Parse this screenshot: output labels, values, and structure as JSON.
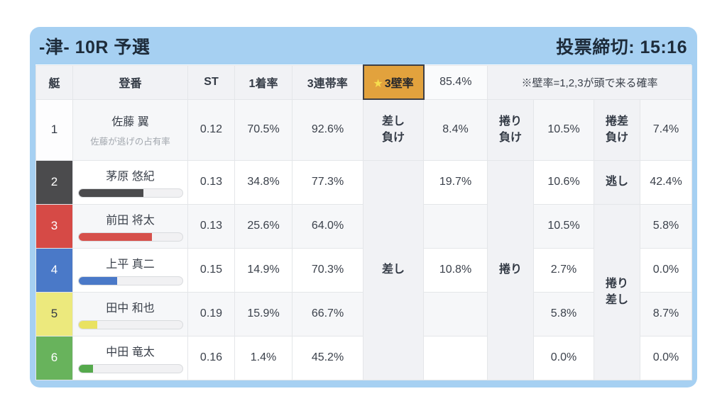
{
  "header": {
    "title": "-津- 10R 予選",
    "deadline": "投票締切: 15:16"
  },
  "columns": {
    "boat": "艇",
    "racer": "登番",
    "st": "ST",
    "win1": "1着率",
    "top3": "3連帯率",
    "wall_star": "★",
    "wall_label": "3壁率",
    "wall_value": "85.4%",
    "note": "※壁率=1,2,3が頭で来る確率"
  },
  "merged": {
    "sashi": "差し",
    "makuri": "捲り",
    "makurizashi": "捲り\n差し"
  },
  "rows": [
    {
      "boat": "1",
      "boat_bg": "#fdfdfe",
      "boat_fg": "#333a45",
      "name": "佐藤 翼",
      "sub": "佐藤が逃げの占有率",
      "st": "0.12",
      "win1": "70.5%",
      "top3": "92.6%",
      "lose_sashi_label": "差し\n負け",
      "lose_sashi": "8.4%",
      "lose_makuri_label": "捲り\n負け",
      "lose_makuri": "10.5%",
      "lose_makurizashi_label": "捲差\n負け",
      "lose_makurizashi": "7.4%"
    },
    {
      "boat": "2",
      "boat_bg": "#4b4b4d",
      "boat_fg": "#ffffff",
      "name": "茅原 悠紀",
      "bar_percent": 63,
      "bar_color": "#4b4b4d",
      "st": "0.13",
      "win1": "34.8%",
      "top3": "77.3%",
      "sashi": "19.7%",
      "makuri": "10.6%",
      "nigashi_label": "逃し",
      "nigashi": "42.4%"
    },
    {
      "boat": "3",
      "boat_bg": "#d64a46",
      "boat_fg": "#ffffff",
      "name": "前田 将太",
      "bar_percent": 71,
      "bar_color": "#d6504b",
      "st": "0.13",
      "win1": "25.6%",
      "top3": "64.0%",
      "sashi": "",
      "makuri": "10.5%",
      "makurizashi": "5.8%"
    },
    {
      "boat": "4",
      "boat_bg": "#4a79c8",
      "boat_fg": "#ffffff",
      "name": "上平 真二",
      "bar_percent": 37,
      "bar_color": "#4a79c8",
      "st": "0.15",
      "win1": "14.9%",
      "top3": "70.3%",
      "sashi": "10.8%",
      "makuri": "2.7%",
      "makurizashi": "0.0%"
    },
    {
      "boat": "5",
      "boat_bg": "#ece97d",
      "boat_fg": "#333a45",
      "name": "田中 和也",
      "bar_percent": 18,
      "bar_color": "#e9e261",
      "st": "0.19",
      "win1": "15.9%",
      "top3": "66.7%",
      "sashi": "",
      "makuri": "5.8%",
      "makurizashi": "8.7%"
    },
    {
      "boat": "6",
      "boat_bg": "#68b35c",
      "boat_fg": "#ffffff",
      "name": "中田 竜太",
      "bar_percent": 14,
      "bar_color": "#55a94c",
      "st": "0.16",
      "win1": "1.4%",
      "top3": "45.2%",
      "sashi": "",
      "makuri": "0.0%",
      "makurizashi": "0.0%"
    }
  ]
}
